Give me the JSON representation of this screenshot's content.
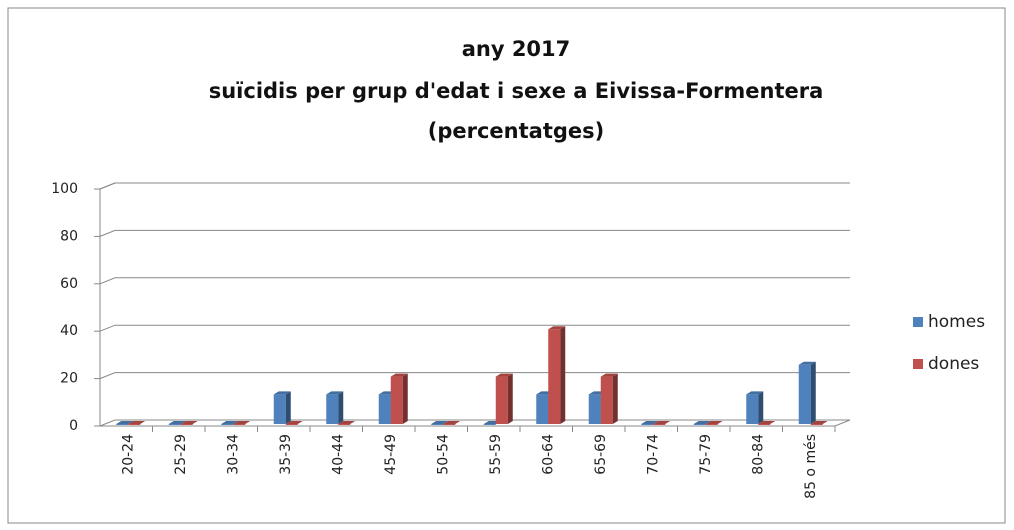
{
  "chart_data": {
    "type": "bar",
    "title": [
      "any 2017",
      "suïcidis per grup d'edat i sexe a Eivissa-Formentera",
      "(percentatges)"
    ],
    "categories": [
      "20-24",
      "25-29",
      "30-34",
      "35-39",
      "40-44",
      "45-49",
      "50-54",
      "55-59",
      "60-64",
      "65-69",
      "70-74",
      "75-79",
      "80-84",
      "85 o més"
    ],
    "series": [
      {
        "name": "homes",
        "color": "#4f81bd",
        "values": [
          0,
          0,
          0,
          12.5,
          12.5,
          12.5,
          0,
          0,
          12.5,
          12.5,
          0,
          0,
          12.5,
          25
        ]
      },
      {
        "name": "dones",
        "color": "#c0504d",
        "values": [
          0,
          0,
          0,
          0,
          0,
          20,
          0,
          20,
          40,
          20,
          0,
          0,
          0,
          0
        ]
      }
    ],
    "ylim": [
      0,
      100
    ],
    "yticks": [
      0,
      20,
      40,
      60,
      80,
      100
    ],
    "grid": true,
    "legend": "right"
  }
}
